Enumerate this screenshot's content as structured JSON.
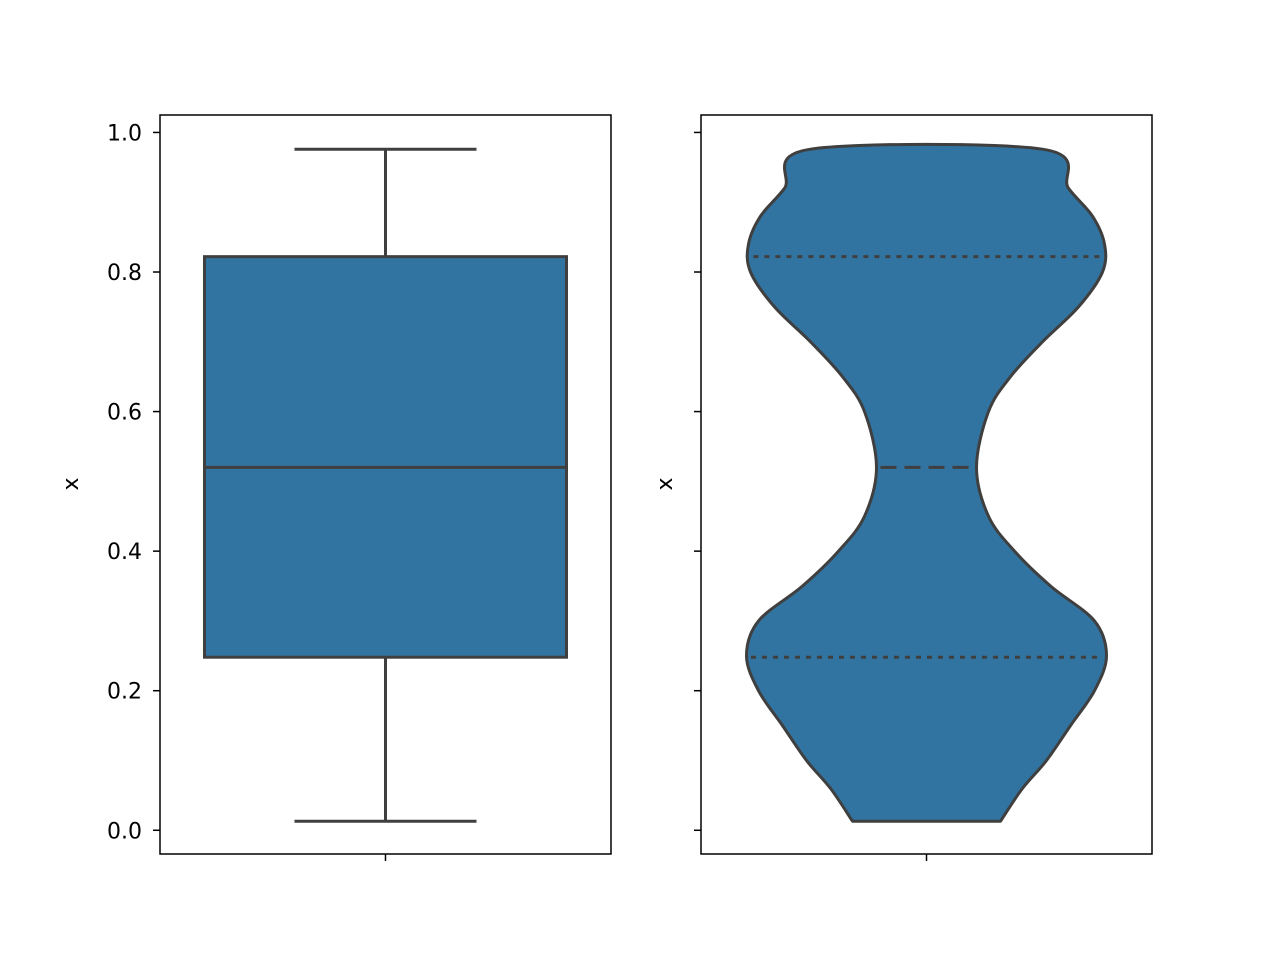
{
  "chart_data": [
    {
      "type": "box",
      "ylabel": "x",
      "xlabel": "",
      "ylim": [
        -0.034,
        1.025
      ],
      "yticks": [
        0.0,
        0.2,
        0.4,
        0.6,
        0.8,
        1.0
      ],
      "ytick_labels": [
        "0.0",
        "0.2",
        "0.4",
        "0.6",
        "0.8",
        "1.0"
      ],
      "stats": {
        "min": 0.013,
        "q1": 0.248,
        "median": 0.52,
        "q3": 0.822,
        "max": 0.976
      }
    },
    {
      "type": "violin",
      "ylabel": "x",
      "xlabel": "",
      "ylim": [
        -0.034,
        1.025
      ],
      "yticks": [
        0.0,
        0.2,
        0.4,
        0.6,
        0.8,
        1.0
      ],
      "range": [
        0.013,
        0.976
      ],
      "quartiles": {
        "q1": 0.248,
        "median": 0.52,
        "q3": 0.822
      },
      "density_profile": [
        [
          0.013,
          0.37
        ],
        [
          0.06,
          0.48
        ],
        [
          0.1,
          0.6
        ],
        [
          0.15,
          0.72
        ],
        [
          0.2,
          0.84
        ],
        [
          0.25,
          0.9
        ],
        [
          0.3,
          0.84
        ],
        [
          0.35,
          0.62
        ],
        [
          0.4,
          0.44
        ],
        [
          0.45,
          0.31
        ],
        [
          0.52,
          0.25
        ],
        [
          0.6,
          0.31
        ],
        [
          0.65,
          0.42
        ],
        [
          0.7,
          0.58
        ],
        [
          0.75,
          0.76
        ],
        [
          0.8,
          0.88
        ],
        [
          0.84,
          0.89
        ],
        [
          0.88,
          0.83
        ],
        [
          0.92,
          0.71
        ],
        [
          0.976,
          0.58
        ]
      ]
    }
  ],
  "colors": {
    "fill": "#3274a1",
    "edge": "#3f3f3f",
    "axes": "#000000"
  }
}
